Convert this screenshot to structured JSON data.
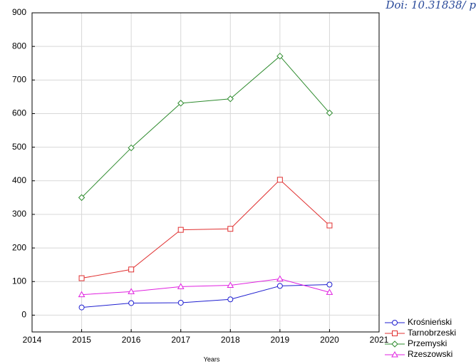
{
  "chart_data": {
    "type": "line",
    "annotation": "Doi: 10.31838/ p",
    "x_label": "Years",
    "x": [
      2015,
      2016,
      2017,
      2018,
      2019,
      2020
    ],
    "series": [
      {
        "name": "Krośnieński",
        "color": "#1f1fd0",
        "marker": "circle",
        "values": [
          23,
          36,
          37,
          47,
          87,
          91
        ]
      },
      {
        "name": "Tarnobrzeski",
        "color": "#e03030",
        "marker": "square",
        "values": [
          110,
          136,
          254,
          257,
          403,
          267
        ]
      },
      {
        "name": "Przemyski",
        "color": "#2e8b2e",
        "marker": "diamond",
        "values": [
          350,
          498,
          631,
          644,
          771,
          602
        ]
      },
      {
        "name": "Rzeszowski",
        "color": "#e020e0",
        "marker": "triangle",
        "values": [
          61,
          70,
          85,
          89,
          108,
          68
        ]
      }
    ],
    "xlim": [
      2014,
      2021
    ],
    "xticks": [
      2014,
      2015,
      2016,
      2017,
      2018,
      2019,
      2020,
      2021
    ],
    "ylim": [
      -50,
      900
    ],
    "yticks": [
      0,
      100,
      200,
      300,
      400,
      500,
      600,
      700,
      800,
      900
    ],
    "grid": true
  }
}
